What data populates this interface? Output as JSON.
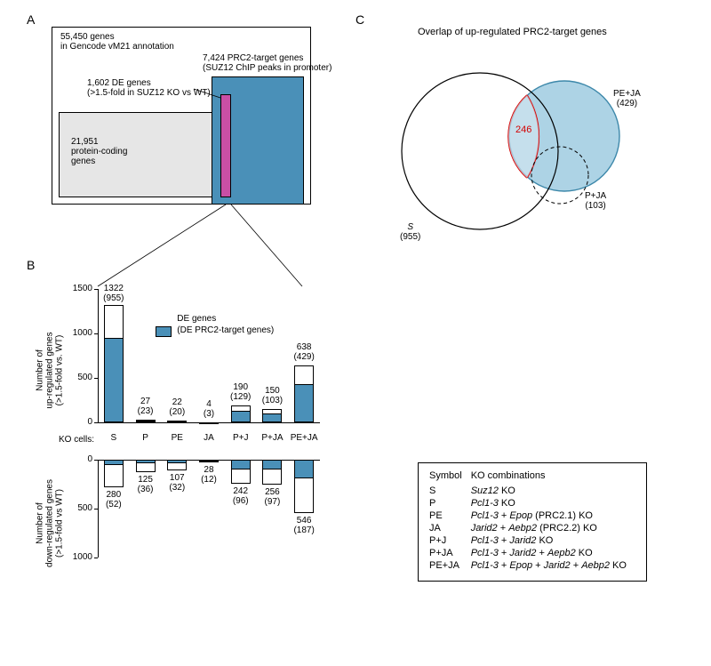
{
  "panelA": {
    "label": "A",
    "outer_text": "55,450 genes\nin Gencode vM21 annotation",
    "prc2_label": "7,424 PRC2-target genes\n(SUZ12 ChIP peaks in promoter)",
    "de_label": "1,602 DE genes\n(>1.5-fold in SUZ12 KO vs WT)",
    "protein_label": "21,951\nprotein-coding\ngenes",
    "colors": {
      "outer_bg": "#ffffff",
      "protein_bg": "#e6e6e6",
      "prc2_bg": "#4a90b8",
      "de_bg": "#c94fa5",
      "border": "#000000"
    }
  },
  "panelB": {
    "label": "B",
    "ylabel_up": "Number of\nup-regulated genes\n(>1.5-fold vs. WT)",
    "ylabel_down": "Number of\ndown-regulated genes\n(>1.5-fold vs WT)",
    "xlabel": "KO cells:",
    "legend_top": "DE genes",
    "legend_sub": "(DE PRC2-target genes)",
    "y_ticks_up": [
      0,
      500,
      1000,
      1500
    ],
    "y_ticks_down": [
      0,
      500,
      1000
    ],
    "categories": [
      "S",
      "P",
      "PE",
      "JA",
      "P+J",
      "P+JA",
      "PE+JA"
    ],
    "up_total": [
      1322,
      27,
      22,
      4,
      190,
      150,
      638
    ],
    "up_prc2": [
      955,
      23,
      20,
      3,
      129,
      103,
      429
    ],
    "down_total": [
      280,
      125,
      107,
      28,
      242,
      256,
      546
    ],
    "down_prc2": [
      52,
      36,
      32,
      12,
      96,
      97,
      187
    ],
    "bar_color": "#4a90b8",
    "bar_border": "#000000",
    "y_max_up": 1500,
    "y_max_down": 1000,
    "up_labels": [
      "1322\n(955)",
      "27\n(23)",
      "22\n(20)",
      "4\n(3)",
      "190\n(129)",
      "150\n(103)",
      "638\n(429)"
    ],
    "down_labels": [
      "280\n(52)",
      "125\n(36)",
      "107\n(32)",
      "28\n(12)",
      "242\n(96)",
      "256\n(97)",
      "546\n(187)"
    ]
  },
  "panelC": {
    "label": "C",
    "title": "Overlap of up-regulated PRC2-target genes",
    "sets": {
      "S": {
        "label": "S",
        "count": "(955)",
        "color": "none",
        "stroke": "#000000"
      },
      "PEJA": {
        "label": "PE+JA",
        "count": "(429)",
        "color": "#9fcbe0",
        "stroke": "#3d88aa"
      },
      "PJA": {
        "label": "P+JA",
        "count": "(103)",
        "color": "none",
        "stroke": "#000000",
        "dashed": true
      }
    },
    "overlap_value": "246",
    "overlap_color": "#d40000"
  },
  "ko_table": {
    "header": [
      "Symbol",
      "KO combinations"
    ],
    "rows": [
      [
        "S",
        "<span class='ital'>Suz12</span> KO"
      ],
      [
        "P",
        "<span class='ital'>Pcl1-3</span> KO"
      ],
      [
        "PE",
        "<span class='ital'>Pcl1-3</span> + <span class='ital'>Epop</span> (PRC2.1) KO"
      ],
      [
        "JA",
        "<span class='ital'>Jarid2</span> + <span class='ital'>Aebp2</span> (PRC2.2) KO"
      ],
      [
        "P+J",
        "<span class='ital'>Pcl1-3</span> + <span class='ital'>Jarid2</span> KO"
      ],
      [
        "P+JA",
        "<span class='ital'>Pcl1-3</span> + <span class='ital'>Jarid2</span> + <span class='ital'>Aepb2</span> KO"
      ],
      [
        "PE+JA",
        "<span class='ital'>Pcl1-3</span> + <span class='ital'>Epop</span> + <span class='ital'>Jarid2</span> + <span class='ital'>Aebp2</span> KO"
      ]
    ]
  }
}
